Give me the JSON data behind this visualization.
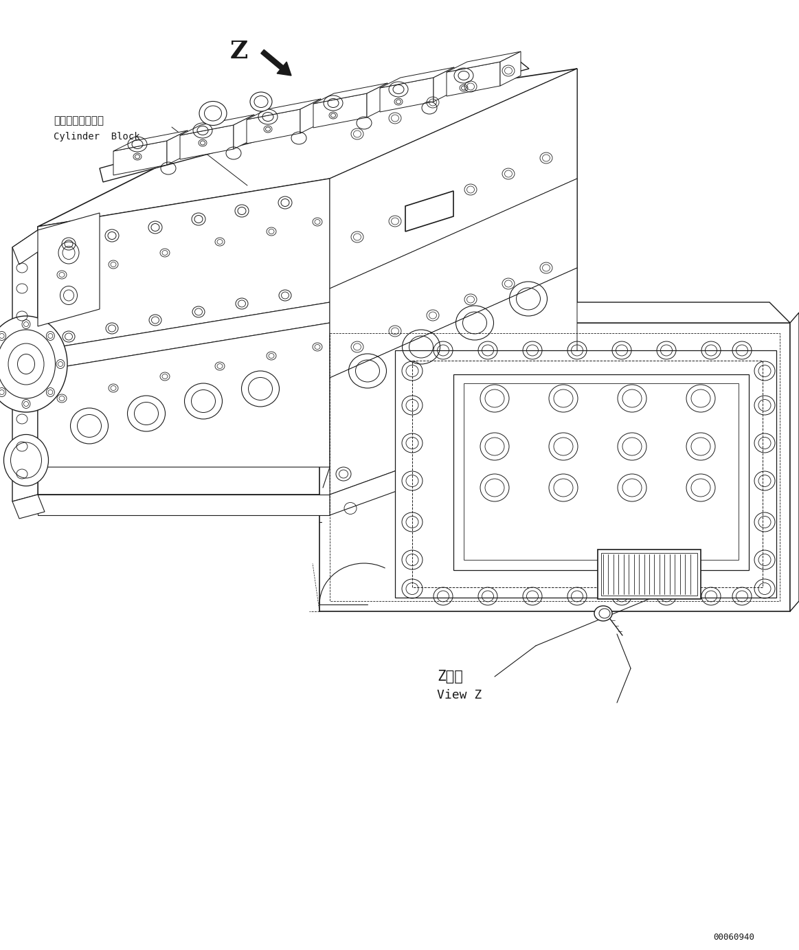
{
  "bg_color": "#ffffff",
  "line_color": "#1a1a1a",
  "fig_width": 11.63,
  "fig_height": 13.83,
  "dpi": 100,
  "label_z": "Z",
  "label_cylinder_jp": "シリンダブロック",
  "label_cylinder_en": "Cylinder  Block",
  "label_viewz_jp": "Z　視",
  "label_viewz_en": "View Z",
  "part_number": "00060940",
  "img_xlim": [
    0,
    1163
  ],
  "img_ylim": [
    0,
    1383
  ]
}
